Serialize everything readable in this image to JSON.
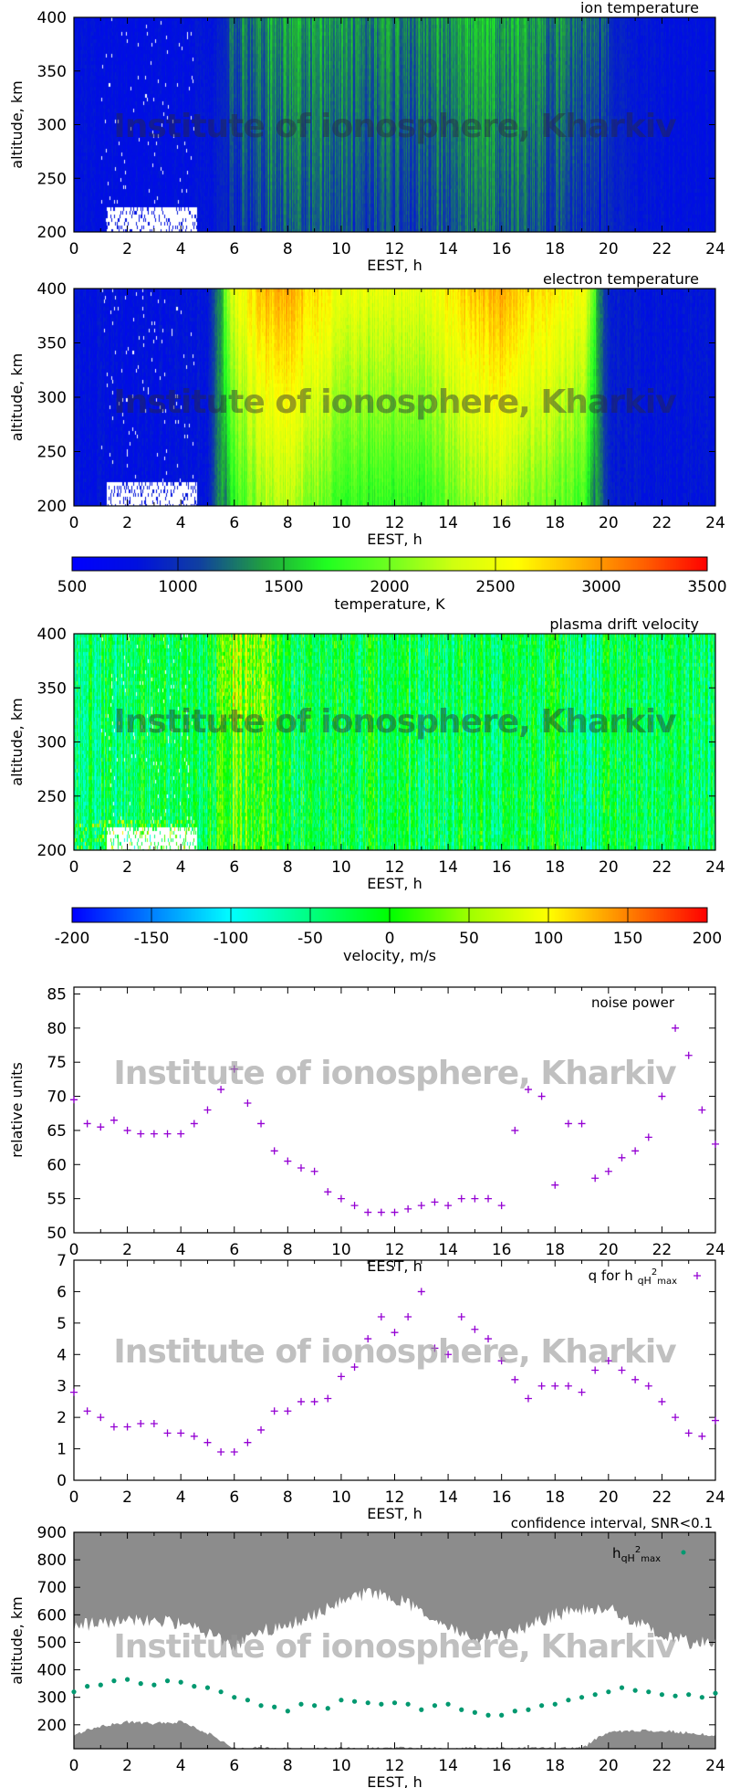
{
  "watermark": "Institute of ionosphere, Kharkiv",
  "chart_data": [
    {
      "id": "ion",
      "type": "heatmap",
      "title": "ion temperature",
      "xlabel": "EEST, h",
      "ylabel": "altitude, km",
      "xlim": [
        0,
        24
      ],
      "ylim": [
        200,
        400
      ],
      "xticks": [
        0,
        2,
        4,
        6,
        8,
        10,
        12,
        14,
        16,
        18,
        20,
        22,
        24
      ],
      "yticks": [
        200,
        250,
        300,
        350,
        400
      ],
      "colorbar": "temperature",
      "hours": [
        0,
        1,
        2,
        3,
        4,
        5,
        6,
        7,
        8,
        9,
        10,
        11,
        12,
        13,
        14,
        15,
        16,
        17,
        18,
        19,
        20,
        21,
        22,
        23,
        24
      ],
      "typical_value_K": [
        800,
        800,
        780,
        780,
        800,
        820,
        1000,
        1200,
        1250,
        1200,
        1150,
        1150,
        1150,
        1150,
        1200,
        1300,
        1250,
        1200,
        1150,
        1050,
        950,
        850,
        820,
        800,
        800
      ]
    },
    {
      "id": "ele",
      "type": "heatmap",
      "title": "electron temperature",
      "xlabel": "EEST, h",
      "ylabel": "altitude, km",
      "xlim": [
        0,
        24
      ],
      "ylim": [
        200,
        400
      ],
      "xticks": [
        0,
        2,
        4,
        6,
        8,
        10,
        12,
        14,
        16,
        18,
        20,
        22,
        24
      ],
      "yticks": [
        200,
        250,
        300,
        350,
        400
      ],
      "colorbar": "temperature",
      "hours": [
        0,
        1,
        2,
        3,
        4,
        5,
        6,
        7,
        8,
        9,
        10,
        11,
        12,
        13,
        14,
        15,
        16,
        17,
        18,
        19,
        20,
        21,
        22,
        23,
        24
      ],
      "typical_value_K": [
        820,
        800,
        800,
        800,
        820,
        850,
        2000,
        2400,
        2500,
        2300,
        2100,
        2000,
        2000,
        2000,
        2200,
        2400,
        2500,
        2300,
        2200,
        2100,
        900,
        850,
        820,
        820,
        820
      ]
    },
    {
      "id": "temp_colorbar",
      "type": "colorbar",
      "label": "temperature, K",
      "range": [
        500,
        3500
      ],
      "ticks": [
        500,
        1000,
        1500,
        2000,
        2500,
        3000,
        3500
      ],
      "colors": [
        "#0000ff",
        "#0010e0",
        "#1040a0",
        "#20a040",
        "#20ff20",
        "#70ff20",
        "#d0ff10",
        "#ffff00",
        "#ffb000",
        "#ff6000",
        "#ff0000"
      ]
    },
    {
      "id": "vel",
      "type": "heatmap",
      "title": "plasma drift velocity",
      "xlabel": "EEST, h",
      "ylabel": "altitude, km",
      "xlim": [
        0,
        24
      ],
      "ylim": [
        200,
        400
      ],
      "xticks": [
        0,
        2,
        4,
        6,
        8,
        10,
        12,
        14,
        16,
        18,
        20,
        22,
        24
      ],
      "yticks": [
        200,
        250,
        300,
        350,
        400
      ],
      "colorbar": "velocity",
      "hours": [
        0,
        1,
        2,
        3,
        4,
        5,
        6,
        7,
        8,
        9,
        10,
        11,
        12,
        13,
        14,
        15,
        16,
        17,
        18,
        19,
        20,
        21,
        22,
        23,
        24
      ],
      "typical_value_ms": [
        -40,
        -40,
        -30,
        -30,
        -30,
        -20,
        20,
        0,
        -20,
        -30,
        -30,
        -30,
        -30,
        -30,
        -30,
        -30,
        -30,
        -30,
        -30,
        -40,
        -40,
        -40,
        -40,
        -40,
        -40
      ]
    },
    {
      "id": "vel_colorbar",
      "type": "colorbar",
      "label": "velocity, m/s",
      "range": [
        -200,
        200
      ],
      "ticks": [
        -200,
        -150,
        -100,
        -50,
        0,
        50,
        100,
        150,
        200
      ],
      "colors": [
        "#0000ff",
        "#0080ff",
        "#00ffff",
        "#00ff80",
        "#00ff00",
        "#a0ff00",
        "#ffff00",
        "#ff8000",
        "#ff0000"
      ]
    },
    {
      "id": "noise",
      "type": "scatter",
      "legend": "noise power",
      "legend_position": "top-right",
      "xlabel": "EEST, h",
      "ylabel": "relative units",
      "xlim": [
        0,
        24
      ],
      "ylim": [
        50,
        86
      ],
      "xticks": [
        0,
        2,
        4,
        6,
        8,
        10,
        12,
        14,
        16,
        18,
        20,
        22,
        24
      ],
      "yticks": [
        50,
        55,
        60,
        65,
        70,
        75,
        80,
        85
      ],
      "color": "#9400d3",
      "marker": "+",
      "x": [
        0,
        0.5,
        1,
        1.5,
        2,
        2.5,
        3,
        3.5,
        4,
        4.5,
        5,
        5.5,
        6,
        6.5,
        7,
        7.5,
        8,
        8.5,
        9,
        9.5,
        10,
        10.5,
        11,
        11.5,
        12,
        12.5,
        13,
        13.5,
        14,
        14.5,
        15,
        15.5,
        16,
        16.5,
        17,
        17.5,
        18,
        18.5,
        19,
        19.5,
        20,
        20.5,
        21,
        21.5,
        22,
        22.5,
        23,
        23.5,
        24
      ],
      "y": [
        69.5,
        66,
        65.5,
        66.5,
        65,
        64.5,
        64.5,
        64.5,
        64.5,
        66,
        68,
        71,
        74,
        69,
        66,
        62,
        60.5,
        59.5,
        59,
        56,
        55,
        54,
        53,
        53,
        53,
        53.5,
        54,
        54.5,
        54,
        55,
        55,
        55,
        54,
        65,
        71,
        70,
        57,
        66,
        66,
        58,
        59,
        61,
        62,
        64,
        70,
        80,
        76,
        68,
        63
      ]
    },
    {
      "id": "q",
      "type": "scatter",
      "legend": "q for h",
      "legend_sub": "qH",
      "legend_sup": "2",
      "legend_sub2": "max",
      "legend_position": "top-right",
      "xlabel": "EEST, h",
      "xlim": [
        0,
        24
      ],
      "ylim": [
        0,
        7
      ],
      "xticks": [
        0,
        2,
        4,
        6,
        8,
        10,
        12,
        14,
        16,
        18,
        20,
        22,
        24
      ],
      "yticks": [
        0,
        1,
        2,
        3,
        4,
        5,
        6,
        7
      ],
      "color": "#9400d3",
      "marker": "+",
      "x": [
        0,
        0.5,
        1,
        1.5,
        2,
        2.5,
        3,
        3.5,
        4,
        4.5,
        5,
        5.5,
        6,
        6.5,
        7,
        7.5,
        8,
        8.5,
        9,
        9.5,
        10,
        10.5,
        11,
        11.5,
        12,
        12.5,
        13,
        13.5,
        14,
        14.5,
        15,
        15.5,
        16,
        16.5,
        17,
        17.5,
        18,
        18.5,
        19,
        19.5,
        20,
        20.5,
        21,
        21.5,
        22,
        22.5,
        23,
        23.5,
        24
      ],
      "y": [
        2.8,
        2.2,
        2.0,
        1.7,
        1.7,
        1.8,
        1.8,
        1.5,
        1.5,
        1.4,
        1.2,
        0.9,
        0.9,
        1.2,
        1.6,
        2.2,
        2.2,
        2.5,
        2.5,
        2.6,
        3.3,
        3.6,
        4.5,
        5.2,
        4.7,
        5.2,
        6.0,
        4.2,
        4.0,
        5.2,
        4.8,
        4.5,
        3.8,
        3.2,
        2.6,
        3.0,
        3.0,
        3.0,
        2.8,
        3.5,
        3.8,
        3.5,
        3.2,
        3.0,
        2.5,
        2.0,
        1.5,
        1.4,
        1.9
      ]
    },
    {
      "id": "conf",
      "type": "scatter",
      "title": "confidence interval, SNR<0.1",
      "legend": "h",
      "legend_sub": "qH",
      "legend_sup": "2",
      "legend_sub2": "max",
      "legend_position": "top-right",
      "xlabel": "EEST, h",
      "ylabel": "altitude, km",
      "xlim": [
        0,
        24
      ],
      "ylim": [
        113,
        900
      ],
      "xticks": [
        0,
        2,
        4,
        6,
        8,
        10,
        12,
        14,
        16,
        18,
        20,
        22,
        24
      ],
      "yticks": [
        200,
        300,
        400,
        500,
        600,
        700,
        800,
        900
      ],
      "color": "#009970",
      "shade_color": "#8c8c8c",
      "x": [
        0,
        0.5,
        1,
        1.5,
        2,
        2.5,
        3,
        3.5,
        4,
        4.5,
        5,
        5.5,
        6,
        6.5,
        7,
        7.5,
        8,
        8.5,
        9,
        9.5,
        10,
        10.5,
        11,
        11.5,
        12,
        12.5,
        13,
        13.5,
        14,
        14.5,
        15,
        15.5,
        16,
        16.5,
        17,
        17.5,
        18,
        18.5,
        19,
        19.5,
        20,
        20.5,
        21,
        21.5,
        22,
        22.5,
        23,
        23.5,
        24
      ],
      "y": [
        320,
        340,
        345,
        360,
        365,
        350,
        345,
        360,
        355,
        340,
        335,
        320,
        300,
        290,
        270,
        265,
        250,
        275,
        270,
        260,
        290,
        285,
        280,
        275,
        280,
        275,
        255,
        270,
        275,
        255,
        245,
        235,
        235,
        250,
        255,
        270,
        275,
        290,
        300,
        310,
        320,
        335,
        325,
        320,
        310,
        305,
        310,
        300,
        315
      ],
      "interval_hours": [
        0,
        1,
        2,
        3,
        4,
        5,
        6,
        7,
        8,
        9,
        10,
        11,
        12,
        13,
        14,
        15,
        16,
        17,
        18,
        19,
        20,
        21,
        22,
        23,
        24
      ],
      "interval_upper_km": [
        560,
        570,
        580,
        580,
        570,
        530,
        490,
        540,
        560,
        600,
        650,
        680,
        660,
        620,
        560,
        520,
        520,
        560,
        600,
        620,
        620,
        580,
        530,
        500,
        500
      ],
      "interval_lower_km": [
        165,
        195,
        210,
        205,
        210,
        170,
        115,
        115,
        115,
        115,
        115,
        115,
        115,
        115,
        115,
        115,
        115,
        115,
        115,
        115,
        175,
        180,
        180,
        170,
        160
      ]
    }
  ]
}
